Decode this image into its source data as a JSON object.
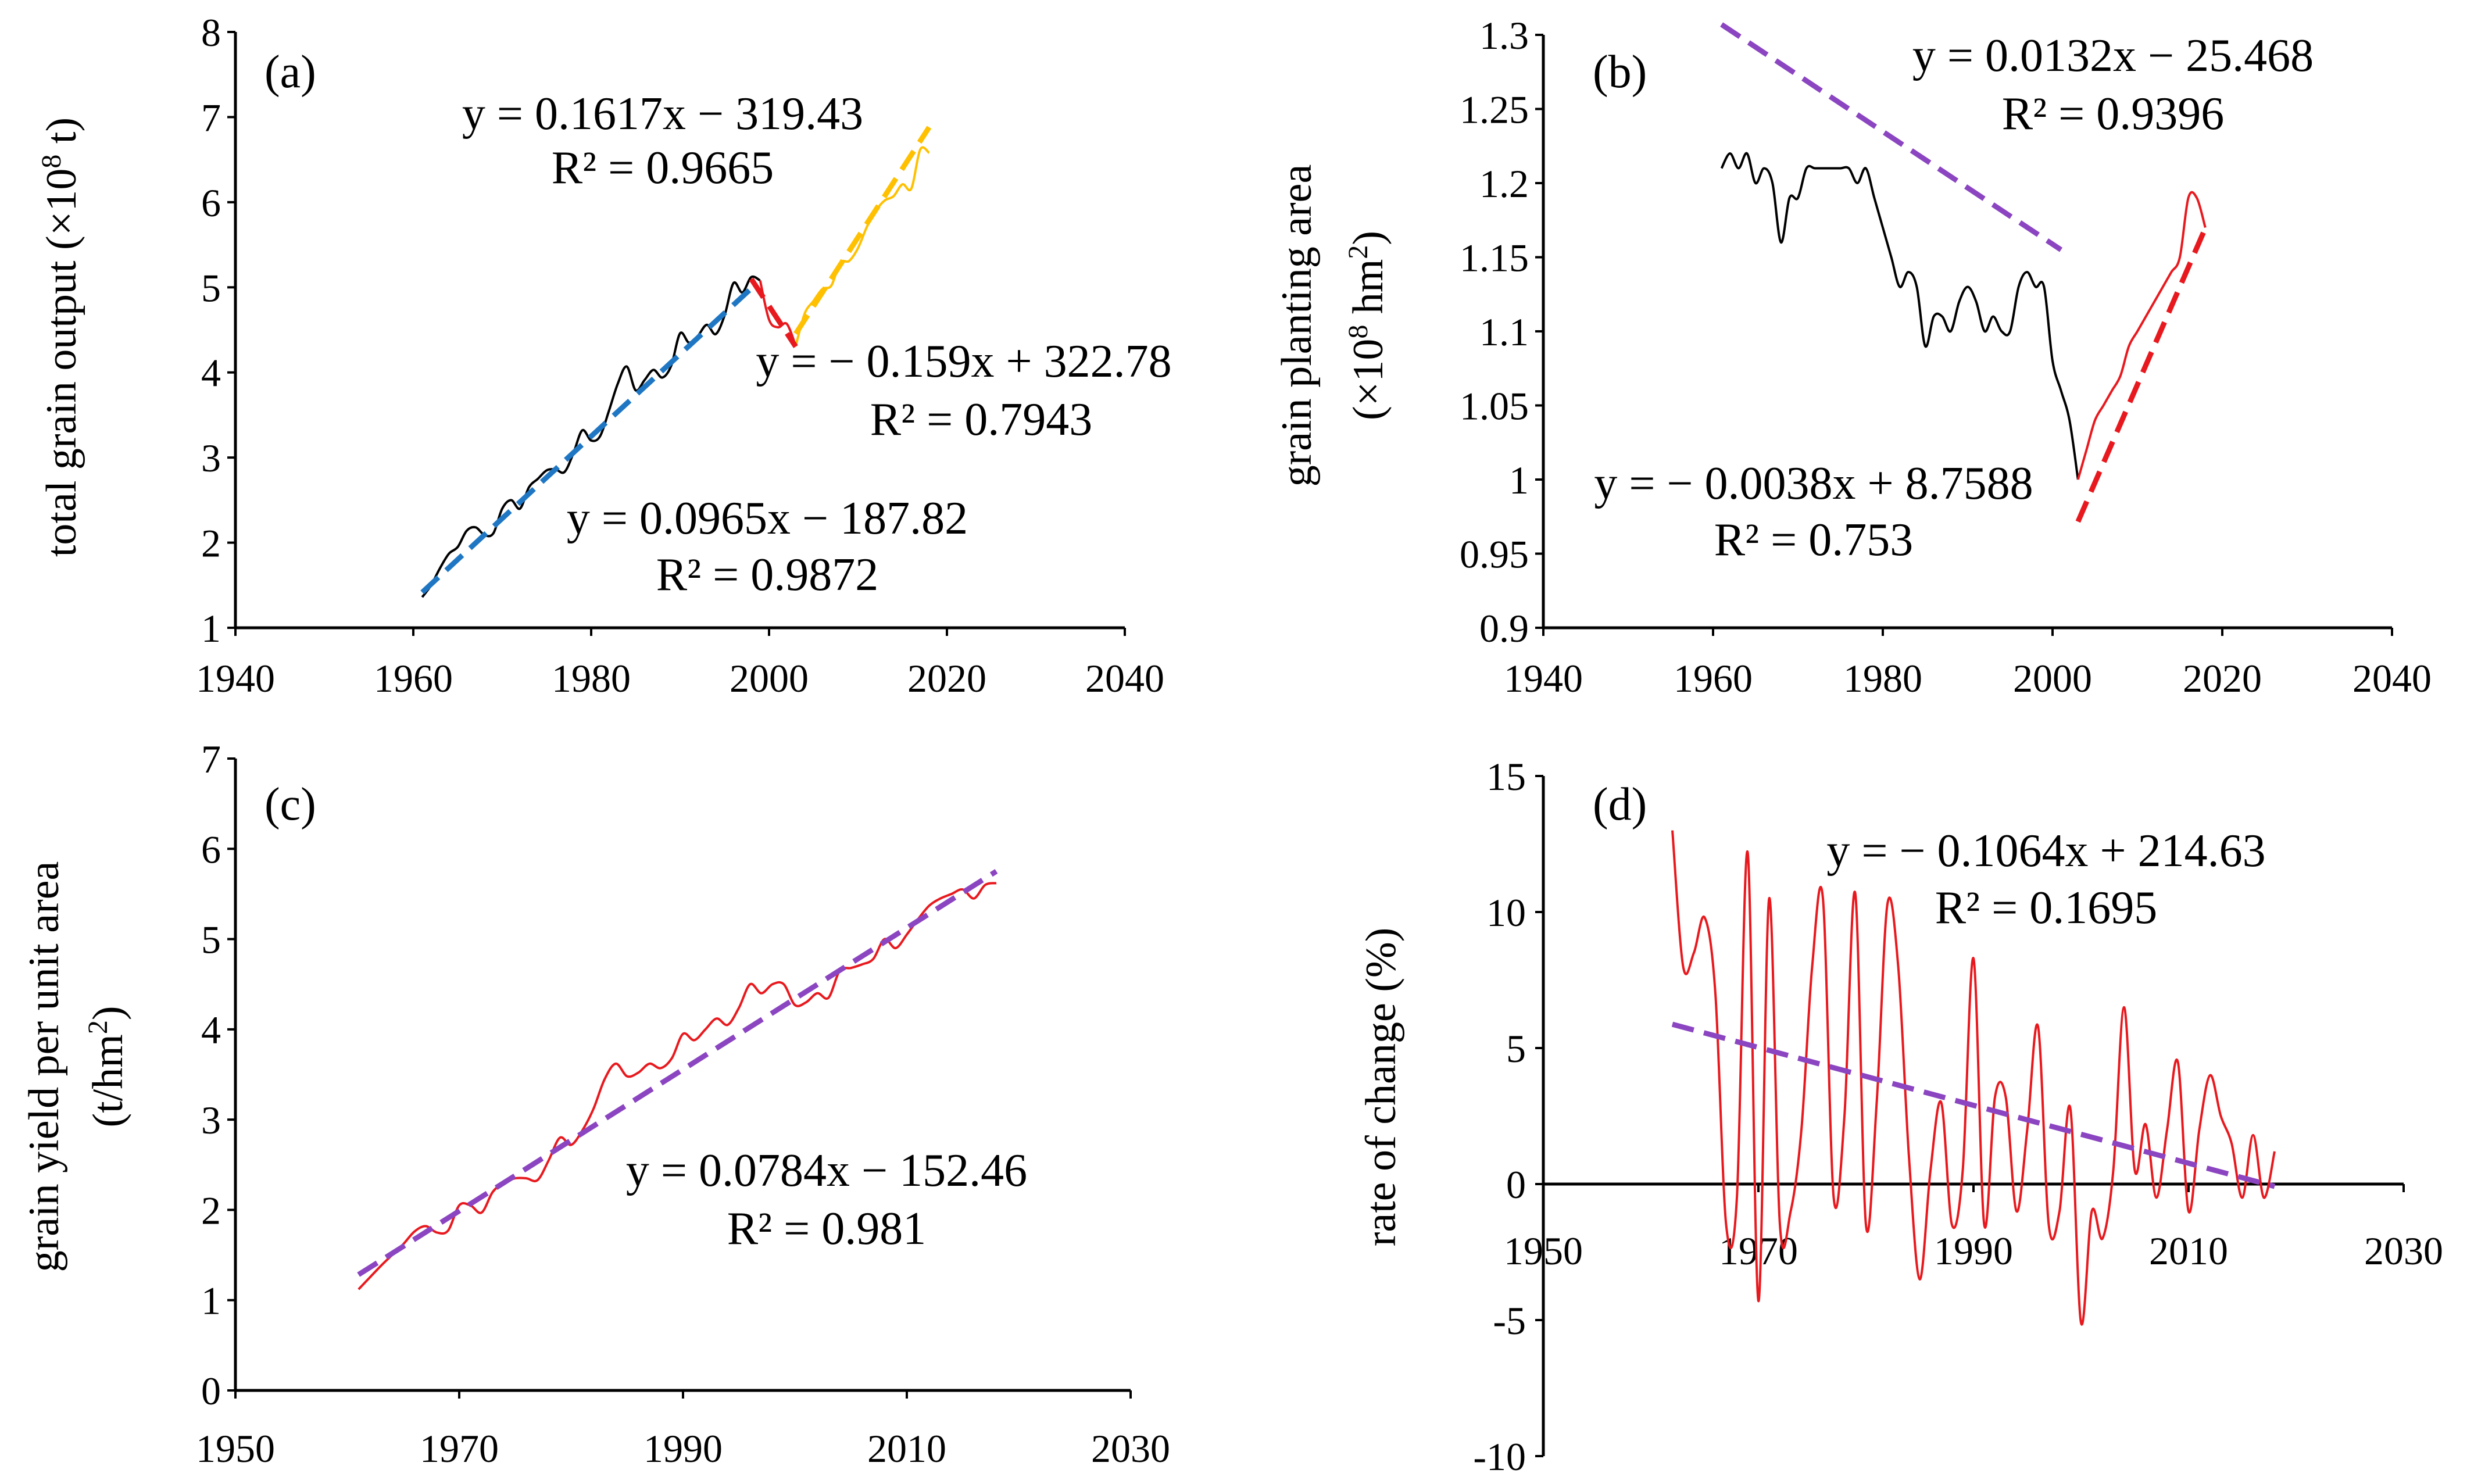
{
  "figure": {
    "panels": [
      {
        "key": "a",
        "label": "(a)"
      },
      {
        "key": "b",
        "label": "(b)"
      },
      {
        "key": "c",
        "label": "(c)"
      },
      {
        "key": "d",
        "label": "(d)"
      }
    ]
  },
  "colors": {
    "series_line": "#000000",
    "series_red": "#e8191e",
    "trend_blue": "#1f77c4",
    "trend_red": "#e8191e",
    "trend_yellow": "#ffc000",
    "trend_purple": "#8b45c1"
  },
  "chart_data": [
    {
      "panel": "(a)",
      "type": "line",
      "title": "",
      "xlabel": "",
      "ylabel": "total grain output (×10⁸ t)",
      "ylabel_parts": [
        "total grain output (×10",
        "8",
        " t)"
      ],
      "xlim": [
        1940,
        2040
      ],
      "ylim": [
        1,
        8
      ],
      "xticks": [
        1940,
        1960,
        1980,
        2000,
        2020,
        2040
      ],
      "yticks": [
        1,
        2,
        3,
        4,
        5,
        6,
        7,
        8
      ],
      "series": [
        {
          "name": "total grain output",
          "color": "#000000",
          "x": [
            1961,
            1962,
            1963,
            1964,
            1965,
            1966,
            1967,
            1968,
            1969,
            1970,
            1971,
            1972,
            1973,
            1974,
            1975,
            1976,
            1977,
            1978,
            1979,
            1980,
            1981,
            1982,
            1983,
            1984,
            1985,
            1986,
            1987,
            1988,
            1989,
            1990,
            1991,
            1992,
            1993,
            1994,
            1995,
            1996,
            1997,
            1998,
            1999
          ],
          "values": [
            1.36,
            1.5,
            1.7,
            1.87,
            1.95,
            2.14,
            2.18,
            2.09,
            2.11,
            2.4,
            2.5,
            2.4,
            2.65,
            2.75,
            2.85,
            2.86,
            2.83,
            3.05,
            3.32,
            3.2,
            3.25,
            3.55,
            3.87,
            4.07,
            3.79,
            3.91,
            4.03,
            3.94,
            4.08,
            4.46,
            4.35,
            4.43,
            4.56,
            4.45,
            4.67,
            5.05,
            4.94,
            5.12,
            5.08
          ],
          "segments": [
            {
              "x": [
                1999,
                2000,
                2001,
                2002,
                2003
              ],
              "values": [
                5.08,
                4.62,
                4.53,
                4.57,
                4.31
              ],
              "color": "#e8191e"
            },
            {
              "x": [
                2003,
                2004,
                2005,
                2006,
                2007,
                2008,
                2009,
                2010,
                2011,
                2012,
                2013,
                2014,
                2015,
                2016,
                2017,
                2018
              ],
              "values": [
                4.31,
                4.69,
                4.84,
                4.98,
                5.02,
                5.29,
                5.31,
                5.46,
                5.71,
                5.9,
                6.02,
                6.07,
                6.21,
                6.16,
                6.62,
                6.58
              ],
              "color": "#ffc000"
            }
          ]
        }
      ],
      "trendlines": [
        {
          "equation": "y = 0.0965x − 187.82",
          "r2": "R² = 0.9872",
          "x": [
            1961,
            1998
          ],
          "slope": 0.0965,
          "intercept": -187.82,
          "color": "#1f77c4"
        },
        {
          "equation": "y = − 0.159x + 322.78",
          "r2": "R² = 0.7943",
          "x": [
            1998,
            2003
          ],
          "slope": -0.159,
          "intercept": 322.78,
          "color": "#e8191e"
        },
        {
          "equation": "y = 0.1617x − 319.43",
          "r2": "R² = 0.9665",
          "x": [
            2003,
            2018
          ],
          "slope": 0.1617,
          "intercept": -319.43,
          "color": "#ffc000"
        }
      ]
    },
    {
      "panel": "(b)",
      "type": "line",
      "title": "",
      "xlabel": "",
      "ylabel": "grain planting area (×10⁸ hm²)",
      "ylabel_line1": "grain planting area",
      "ylabel_line2_parts": [
        "(×10",
        "8",
        " hm",
        "2",
        ")"
      ],
      "xlim": [
        1940,
        2040
      ],
      "ylim": [
        0.9,
        1.3
      ],
      "xticks": [
        1940,
        1960,
        1980,
        2000,
        2020,
        2040
      ],
      "yticks": [
        0.9,
        0.95,
        1,
        1.05,
        1.1,
        1.15,
        1.2,
        1.25,
        1.3
      ],
      "ytick_labels": [
        "0.9",
        "0.95",
        "1",
        "1.05",
        "1.1",
        "1.15",
        "1.2",
        "1.25",
        "1.3"
      ],
      "series": [
        {
          "name": "grain planting area",
          "color": "#000000",
          "x": [
            1961,
            1962,
            1963,
            1964,
            1965,
            1966,
            1967,
            1968,
            1969,
            1970,
            1971,
            1972,
            1973,
            1974,
            1975,
            1976,
            1977,
            1978,
            1979,
            1980,
            1981,
            1982,
            1983,
            1984,
            1985,
            1986,
            1987,
            1988,
            1989,
            1990,
            1991,
            1992,
            1993,
            1994,
            1995,
            1996,
            1997,
            1998,
            1999,
            2000,
            2001,
            2002,
            2003
          ],
          "values": [
            1.21,
            1.22,
            1.21,
            1.22,
            1.2,
            1.21,
            1.2,
            1.16,
            1.19,
            1.19,
            1.21,
            1.21,
            1.21,
            1.21,
            1.21,
            1.21,
            1.2,
            1.21,
            1.19,
            1.17,
            1.15,
            1.13,
            1.14,
            1.13,
            1.09,
            1.11,
            1.11,
            1.1,
            1.12,
            1.13,
            1.12,
            1.1,
            1.11,
            1.1,
            1.1,
            1.13,
            1.14,
            1.13,
            1.13,
            1.08,
            1.06,
            1.04,
            1.0
          ],
          "segments": [
            {
              "x": [
                2003,
                2004,
                2005,
                2006,
                2007,
                2008,
                2009,
                2010,
                2011,
                2012,
                2013,
                2014,
                2015,
                2016,
                2017,
                2018
              ],
              "values": [
                1.0,
                1.02,
                1.04,
                1.05,
                1.06,
                1.07,
                1.09,
                1.1,
                1.11,
                1.12,
                1.13,
                1.14,
                1.15,
                1.19,
                1.19,
                1.17
              ],
              "color": "#e8191e"
            }
          ]
        }
      ],
      "trendlines": [
        {
          "equation": "y = − 0.0038x + 8.7588",
          "r2": "R² = 0.753",
          "x": [
            1961,
            2001
          ],
          "slope": -0.0038,
          "intercept": 8.7588,
          "color": "#8b45c1"
        },
        {
          "equation": "y = 0.0132x − 25.468",
          "r2": "R² = 0.9396",
          "x": [
            2003,
            2018
          ],
          "slope": 0.0132,
          "intercept": -25.468,
          "color": "#e8191e"
        }
      ]
    },
    {
      "panel": "(c)",
      "type": "line",
      "title": "",
      "xlabel": "",
      "ylabel": "grain yield per unit area (t/hm²)",
      "ylabel_line1": "grain yield per unit area",
      "ylabel_line2_parts": [
        "(t/hm",
        "2",
        ")"
      ],
      "xlim": [
        1950,
        2030
      ],
      "ylim": [
        0,
        7
      ],
      "xticks": [
        1950,
        1970,
        1990,
        2010,
        2030
      ],
      "yticks": [
        0,
        1,
        2,
        3,
        4,
        5,
        6,
        7
      ],
      "series": [
        {
          "name": "grain yield per unit area",
          "color": "#e8191e",
          "x": [
            1961,
            1962,
            1963,
            1964,
            1965,
            1966,
            1967,
            1968,
            1969,
            1970,
            1971,
            1972,
            1973,
            1974,
            1975,
            1976,
            1977,
            1978,
            1979,
            1980,
            1981,
            1982,
            1983,
            1984,
            1985,
            1986,
            1987,
            1988,
            1989,
            1990,
            1991,
            1992,
            1993,
            1994,
            1995,
            1996,
            1997,
            1998,
            1999,
            2000,
            2001,
            2002,
            2003,
            2004,
            2005,
            2006,
            2007,
            2008,
            2009,
            2010,
            2011,
            2012,
            2013,
            2014,
            2015,
            2016,
            2017,
            2018
          ],
          "values": [
            1.12,
            1.25,
            1.38,
            1.5,
            1.62,
            1.76,
            1.82,
            1.75,
            1.77,
            2.05,
            2.05,
            1.97,
            2.2,
            2.3,
            2.35,
            2.35,
            2.33,
            2.55,
            2.8,
            2.72,
            2.88,
            3.12,
            3.45,
            3.62,
            3.48,
            3.52,
            3.62,
            3.57,
            3.68,
            3.95,
            3.88,
            4.0,
            4.12,
            4.05,
            4.24,
            4.5,
            4.4,
            4.5,
            4.5,
            4.27,
            4.3,
            4.4,
            4.35,
            4.65,
            4.68,
            4.72,
            4.78,
            5.0,
            4.9,
            5.05,
            5.22,
            5.37,
            5.45,
            5.5,
            5.55,
            5.45,
            5.6,
            5.62
          ]
        }
      ],
      "trendlines": [
        {
          "equation": "y = 0.0784x − 152.46",
          "r2": "R² = 0.981",
          "x": [
            1961,
            2018
          ],
          "slope": 0.0784,
          "intercept": -152.46,
          "color": "#8b45c1"
        }
      ]
    },
    {
      "panel": "(d)",
      "type": "line",
      "title": "",
      "xlabel": "",
      "ylabel": "rate of change  (%)",
      "xlim": [
        1950,
        2030
      ],
      "ylim": [
        -10,
        15
      ],
      "xticks": [
        1950,
        1970,
        1990,
        2010,
        2030
      ],
      "yticks": [
        -10,
        -5,
        0,
        5,
        10,
        15
      ],
      "series": [
        {
          "name": "rate of change",
          "color": "#e8191e",
          "x": [
            1962,
            1963,
            1964,
            1965,
            1966,
            1967,
            1968,
            1969,
            1970,
            1971,
            1972,
            1973,
            1974,
            1975,
            1976,
            1977,
            1978,
            1979,
            1980,
            1981,
            1982,
            1983,
            1984,
            1985,
            1986,
            1987,
            1988,
            1989,
            1990,
            1991,
            1992,
            1993,
            1994,
            1995,
            1996,
            1997,
            1998,
            1999,
            2000,
            2001,
            2002,
            2003,
            2004,
            2005,
            2006,
            2007,
            2008,
            2009,
            2010,
            2011,
            2012,
            2013,
            2014,
            2015,
            2016,
            2017,
            2018
          ],
          "values": [
            13,
            8,
            8.5,
            9.8,
            7,
            -1.5,
            -0.5,
            12.2,
            -4.3,
            10.5,
            -1.5,
            -1,
            2,
            8,
            10.5,
            -0.5,
            2.5,
            10.7,
            -1.5,
            3,
            10.3,
            8,
            1,
            -3.5,
            0.5,
            3,
            -1.5,
            0.5,
            8.3,
            -1.5,
            3.2,
            3.2,
            -1,
            2,
            5.8,
            -1.5,
            -1,
            2.8,
            -5.1,
            -1,
            -2,
            0.5,
            6.5,
            0.5,
            2.2,
            -0.5,
            2,
            4.5,
            -1,
            2,
            4,
            2.5,
            1.5,
            -0.5,
            1.8,
            -0.5,
            1.2
          ],
          "segments": []
        }
      ],
      "trendlines": [
        {
          "equation": "y = − 0.1064x + 214.63",
          "r2": "R² = 0.1695",
          "x": [
            1962,
            2018
          ],
          "slope": -0.1064,
          "intercept": 214.63,
          "color": "#8b45c1"
        }
      ]
    }
  ]
}
